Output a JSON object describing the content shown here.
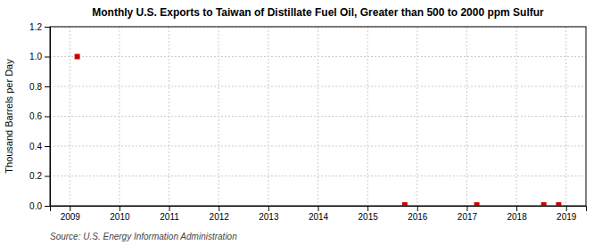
{
  "chart_data": {
    "type": "scatter",
    "title": "Monthly U.S. Exports to Taiwan of Distillate Fuel Oil, Greater than 500 to 2000 ppm Sulfur",
    "ylabel": "Thousand Barrels per Day",
    "annotation": "Source: U.S. Energy Information Administration",
    "x": [
      2009.15,
      2015.75,
      2017.2,
      2018.55,
      2018.85
    ],
    "values": [
      1.0,
      0.006,
      0.006,
      0.006,
      0.006
    ],
    "color": "#cc0000",
    "marker": "square",
    "xlim": [
      2008.6,
      2019.4
    ],
    "ylim": [
      0.0,
      1.2
    ],
    "xticks": [
      2009,
      2010,
      2011,
      2012,
      2013,
      2014,
      2015,
      2016,
      2017,
      2018,
      2019
    ],
    "yticks": [
      {
        "value": 0.0,
        "label": "0.0"
      },
      0.2,
      0.4,
      0.6,
      0.8,
      {
        "value": 1.0,
        "label": "1.0"
      },
      1.2
    ],
    "grid": true
  }
}
